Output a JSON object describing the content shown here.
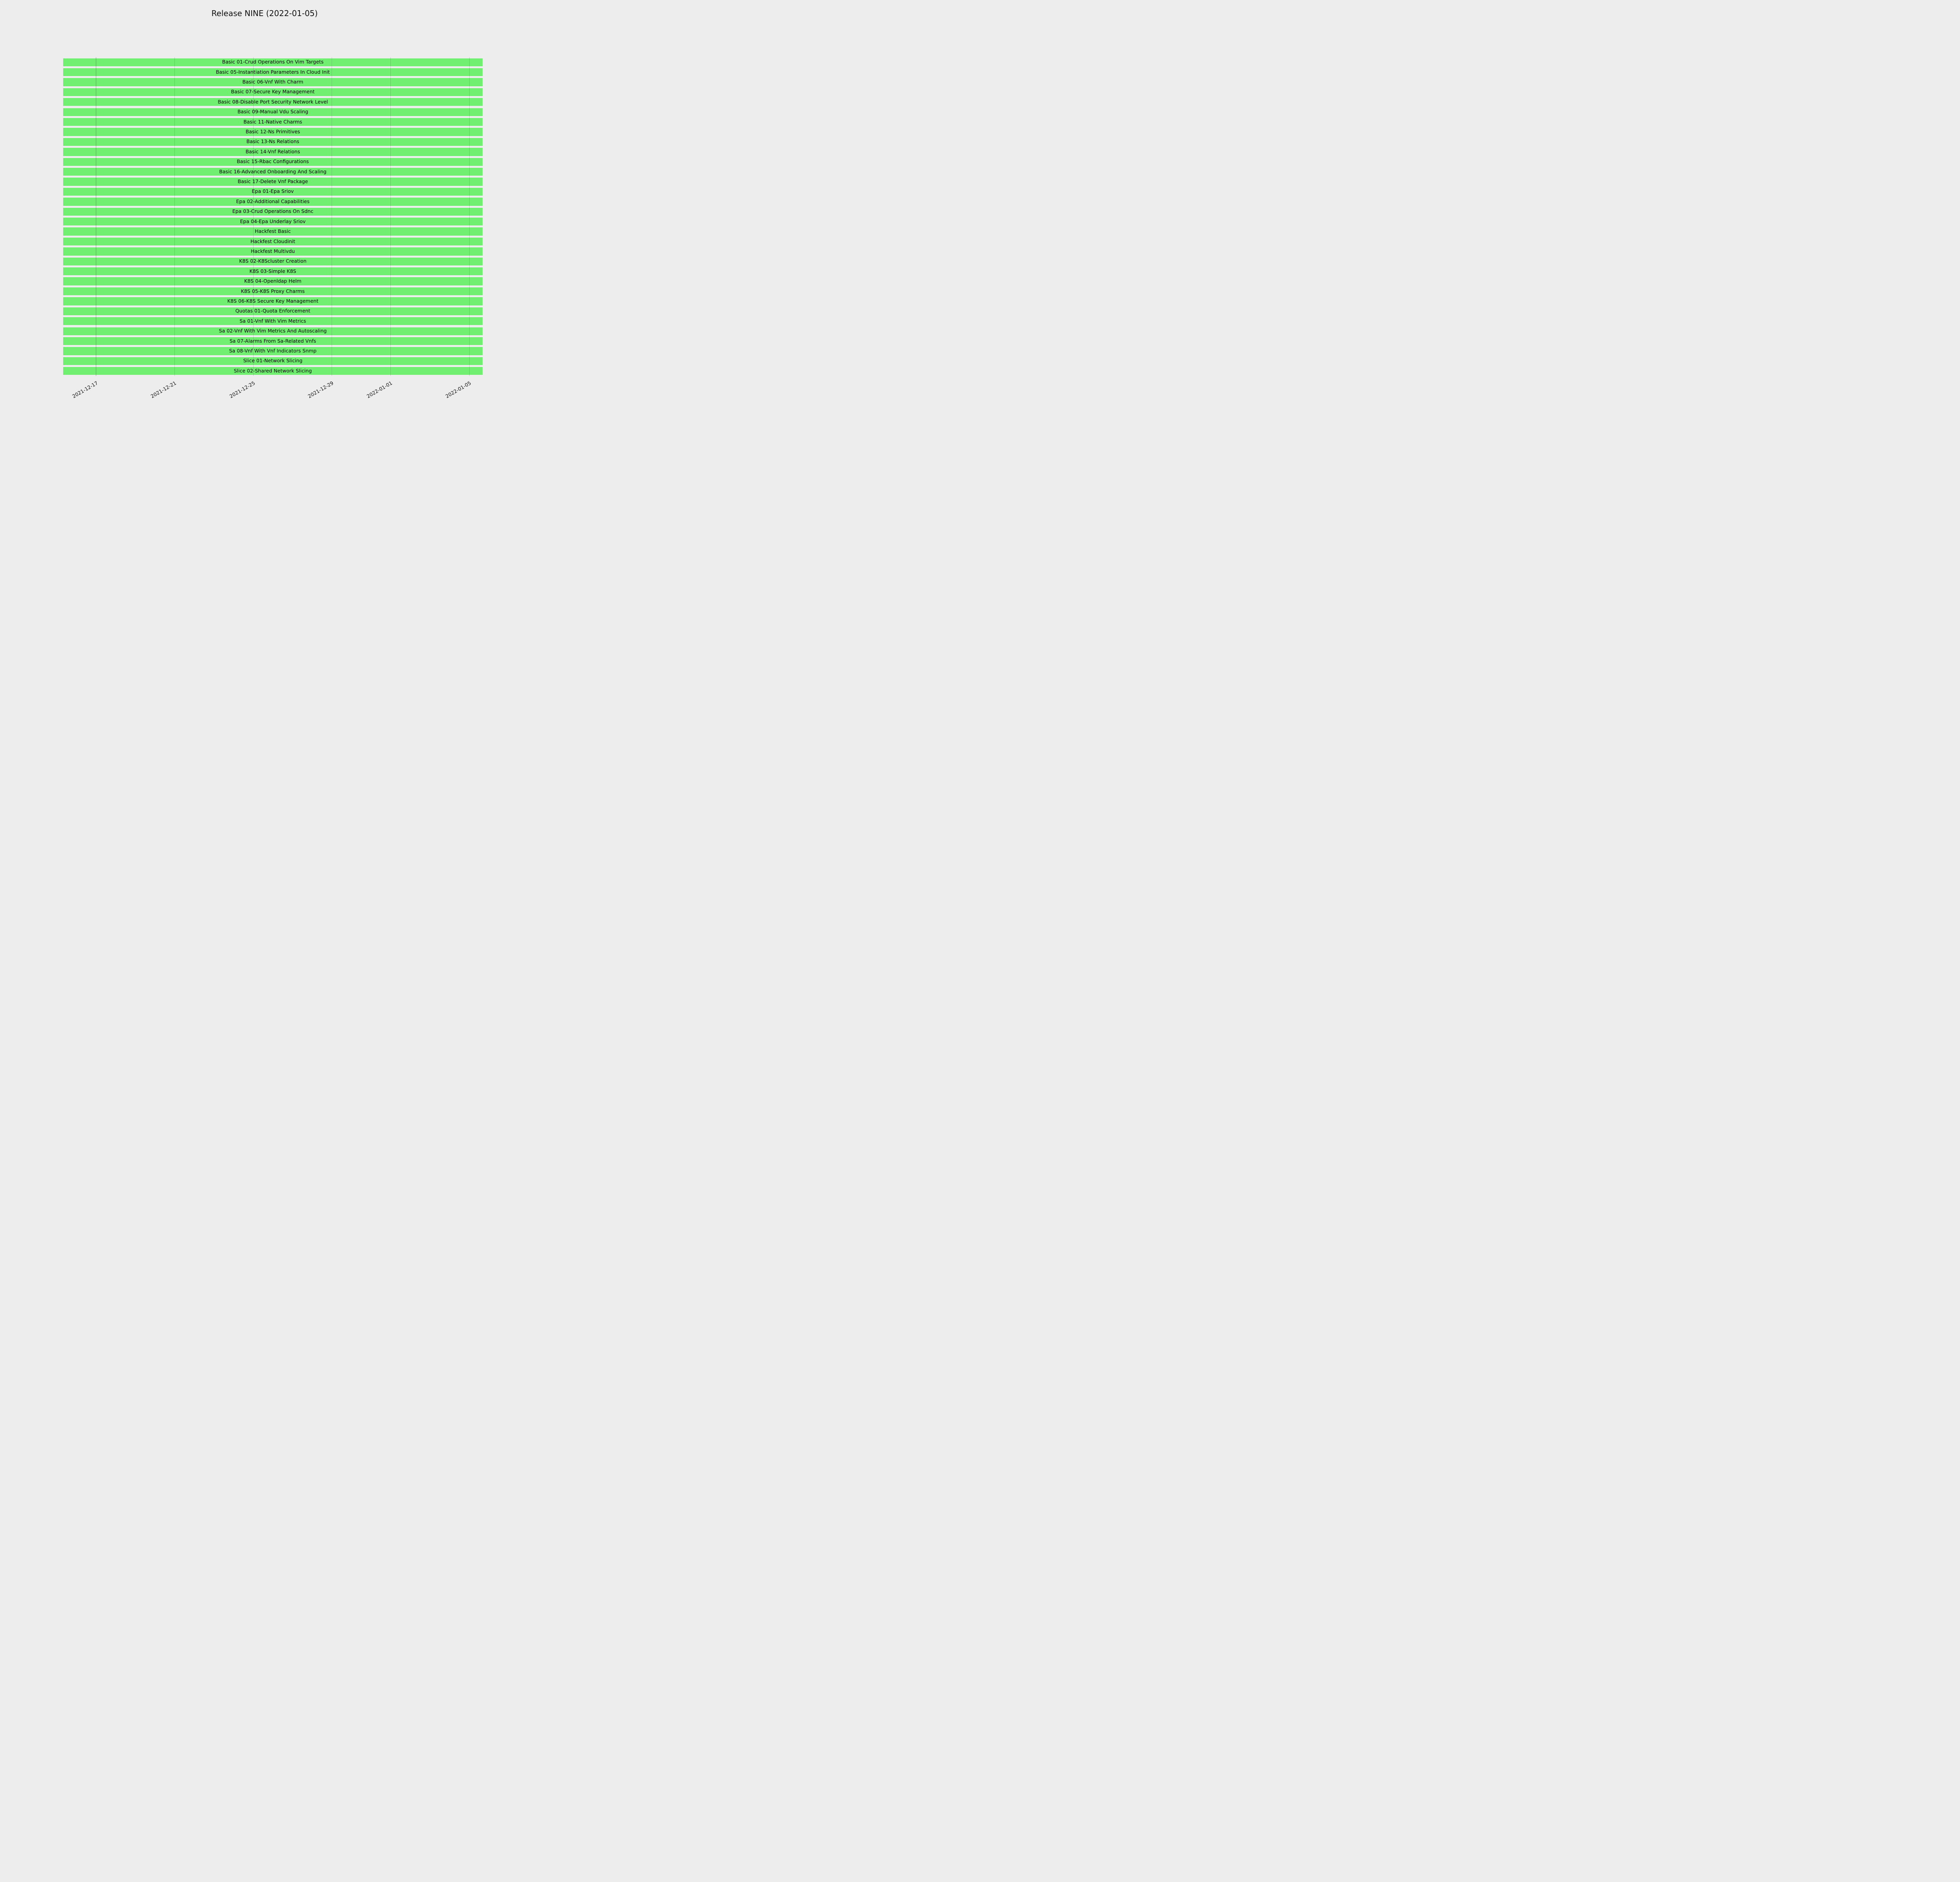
{
  "colors": {
    "background": "#ededed",
    "bar": "#70ef70",
    "grid": "rgba(60,60,60,0.22)",
    "text": "#000000"
  },
  "chart_data": {
    "type": "bar",
    "subtype": "gantt",
    "orientation": "horizontal",
    "title": "Release NINE (2022-01-05)",
    "grid": true,
    "legend": false,
    "xlim": [
      "2021-12-15",
      "2022-01-06"
    ],
    "bar_span": {
      "start": "2021-12-15",
      "end": "2022-01-06",
      "note": "every bar spans the full x-axis range"
    },
    "rows": [
      "Basic 01-Crud Operations On Vim Targets",
      "Basic 05-Instantiation Parameters In Cloud Init",
      "Basic 06-Vnf With Charm",
      "Basic 07-Secure Key Management",
      "Basic 08-Disable Port Security Network Level",
      "Basic 09-Manual Vdu Scaling",
      "Basic 11-Native Charms",
      "Basic 12-Ns Primitives",
      "Basic 13-Ns Relations",
      "Basic 14-Vnf Relations",
      "Basic 15-Rbac Configurations",
      "Basic 16-Advanced Onboarding And Scaling",
      "Basic 17-Delete Vnf Package",
      "Epa 01-Epa Sriov",
      "Epa 02-Additional Capabilities",
      "Epa 03-Crud Operations On Sdnc",
      "Epa 04-Epa Underlay Sriov",
      "Hackfest Basic",
      "Hackfest Cloudinit",
      "Hackfest Multivdu",
      "K8S 02-K8Scluster Creation",
      "K8S 03-Simple K8S",
      "K8S 04-Openldap Helm",
      "K8S 05-K8S Proxy Charms",
      "K8S 06-K8S Secure Key Management",
      "Quotas 01-Quota Enforcement",
      "Sa 01-Vnf With Vim Metrics",
      "Sa 02-Vnf With Vim Metrics And Autoscaling",
      "Sa 07-Alarms From Sa-Related Vnfs",
      "Sa 08-Vnf With Vnf Indicators Snmp",
      "Slice 01-Network Slicing",
      "Slice 02-Shared Network Slicing"
    ],
    "x_ticks": [
      {
        "label": "2021-12-17",
        "pos_pct": 7.8
      },
      {
        "label": "2021-12-21",
        "pos_pct": 26.5
      },
      {
        "label": "2021-12-25",
        "pos_pct": 45.3
      },
      {
        "label": "2021-12-29",
        "pos_pct": 64.0
      },
      {
        "label": "2022-01-01",
        "pos_pct": 78.0
      },
      {
        "label": "2022-01-05",
        "pos_pct": 96.8
      }
    ]
  }
}
